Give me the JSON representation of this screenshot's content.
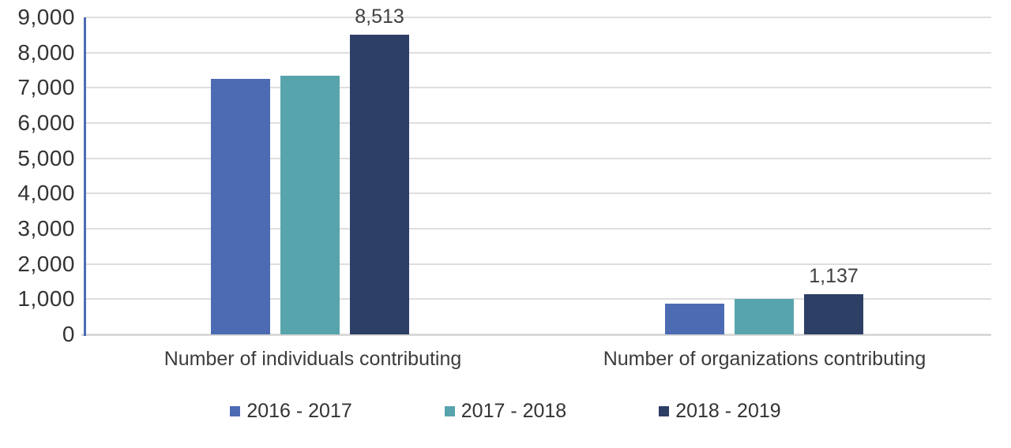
{
  "chart_data": {
    "type": "bar",
    "title": "",
    "categories": [
      "Number of individuals contributing",
      "Number of organizations contributing"
    ],
    "series": [
      {
        "name": "2016 - 2017",
        "color": "#4c6bb2",
        "values": [
          7250,
          870
        ]
      },
      {
        "name": "2017 - 2018",
        "color": "#58a4ad",
        "values": [
          7340,
          1000
        ]
      },
      {
        "name": "2018 - 2019",
        "color": "#2e3f66",
        "values": [
          8513,
          1137
        ]
      }
    ],
    "data_labels": [
      {
        "series_index": 2,
        "category_index": 0,
        "text": "8,513"
      },
      {
        "series_index": 2,
        "category_index": 1,
        "text": "1,137"
      }
    ],
    "y_axis": {
      "min": 0,
      "max": 9000,
      "step": 1000,
      "tick_labels": [
        "9,000",
        "8,000",
        "7,000",
        "6,000",
        "5,000",
        "4,000",
        "3,000",
        "2,000",
        "1,000",
        "0"
      ]
    },
    "grid": true,
    "legend_position": "bottom",
    "colors": {
      "gridline": "#dedede",
      "baseline": "#d9d9d9",
      "y_axis_line": "#4c6bb2",
      "tick_text": "#333333",
      "category_text": "#3c3c3c",
      "data_label_text": "#404040"
    }
  }
}
